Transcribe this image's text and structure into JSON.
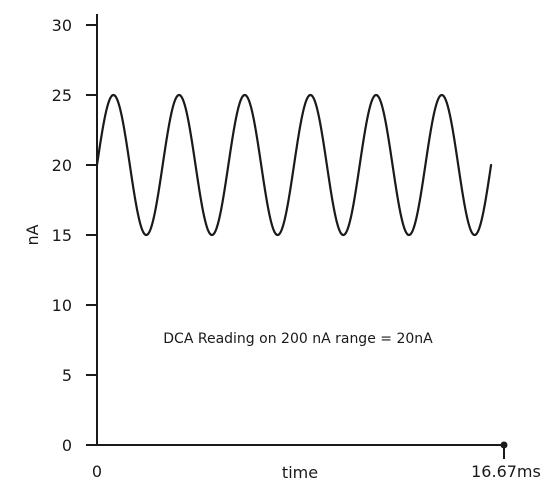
{
  "chart_data": {
    "type": "line",
    "title": "",
    "xlabel": "time",
    "ylabel": "nA",
    "ylim": [
      0,
      30
    ],
    "xlim": [
      0,
      16.67
    ],
    "y_ticks": [
      "0",
      "5",
      "10",
      "15",
      "20",
      "25",
      "30"
    ],
    "x_tick_labels": [
      "0",
      "16.67ms"
    ],
    "grid": false,
    "legend": "none",
    "annotation": "DCA Reading on 200 nA range = 20nA",
    "series": [
      {
        "waveform": "sine",
        "offset": 20,
        "amplitude": 5,
        "cycles": 6,
        "x_start": 0,
        "x_end": 16.14,
        "color": "#1a1a1a"
      }
    ],
    "axis_color": "#1a1a1a"
  }
}
